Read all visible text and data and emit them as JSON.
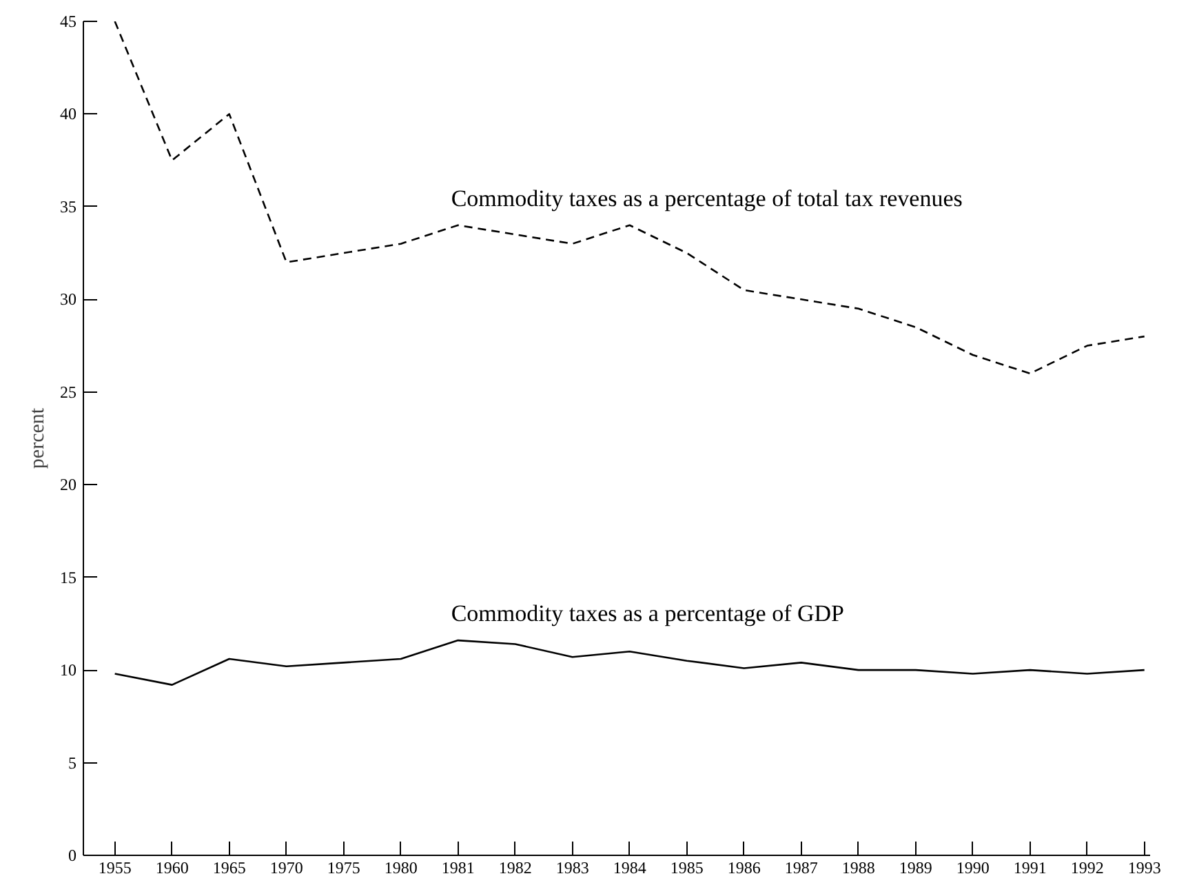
{
  "chart_data": {
    "type": "line",
    "ylabel": "percent",
    "categories": [
      "1955",
      "1960",
      "1965",
      "1970",
      "1975",
      "1980",
      "1981",
      "1982",
      "1983",
      "1984",
      "1985",
      "1986",
      "1987",
      "1988",
      "1989",
      "1990",
      "1991",
      "1992",
      "1993"
    ],
    "ylim": [
      0,
      45
    ],
    "yticks": [
      0,
      5,
      10,
      15,
      20,
      25,
      30,
      35,
      40,
      45
    ],
    "grid": false,
    "series": [
      {
        "name": "Commodity taxes as a percentage of total tax revenues",
        "color": "#000000",
        "line_style": "dashed",
        "values": [
          45,
          37.5,
          40,
          32,
          32.5,
          33,
          34,
          33.5,
          33,
          34,
          32.5,
          30.5,
          30,
          29.5,
          28.5,
          27,
          26,
          27.5,
          28
        ]
      },
      {
        "name": "Commodity taxes as a percentage of GDP",
        "color": "#000000",
        "line_style": "solid",
        "values": [
          9.8,
          9.2,
          10.6,
          10.2,
          10.4,
          10.6,
          11.6,
          11.4,
          10.7,
          11.0,
          10.5,
          10.1,
          10.4,
          10.0,
          10.0,
          9.8,
          10.0,
          9.8,
          10.0
        ]
      }
    ]
  }
}
